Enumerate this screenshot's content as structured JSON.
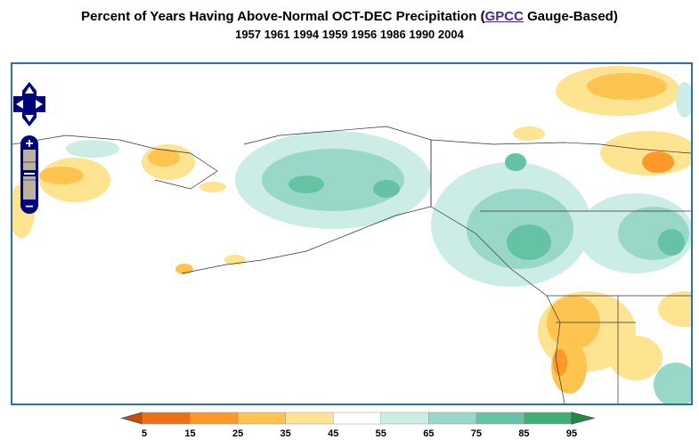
{
  "title": {
    "prefix": "Percent of Years Having Above-Normal OCT-DEC Precipitation (",
    "link": "GPCC",
    "suffix": " Gauge-Based)"
  },
  "subtitle": "1957 1961 1994 1959 1956 1986 1990 2004",
  "map_controls": {
    "pan": [
      "pan-up",
      "pan-down",
      "pan-left",
      "pan-right"
    ],
    "zoom_in": "+",
    "zoom_out": "−"
  },
  "colorbar": {
    "ticks": [
      "5",
      "15",
      "25",
      "35",
      "45",
      "55",
      "65",
      "75",
      "85",
      "95"
    ],
    "colors": [
      "#cc4c02",
      "#ec7014",
      "#fe9929",
      "#fec44f",
      "#fee391",
      "#ffffff",
      "#ccece6",
      "#99d8c9",
      "#66c2a4",
      "#41ae76",
      "#238b45"
    ]
  }
}
